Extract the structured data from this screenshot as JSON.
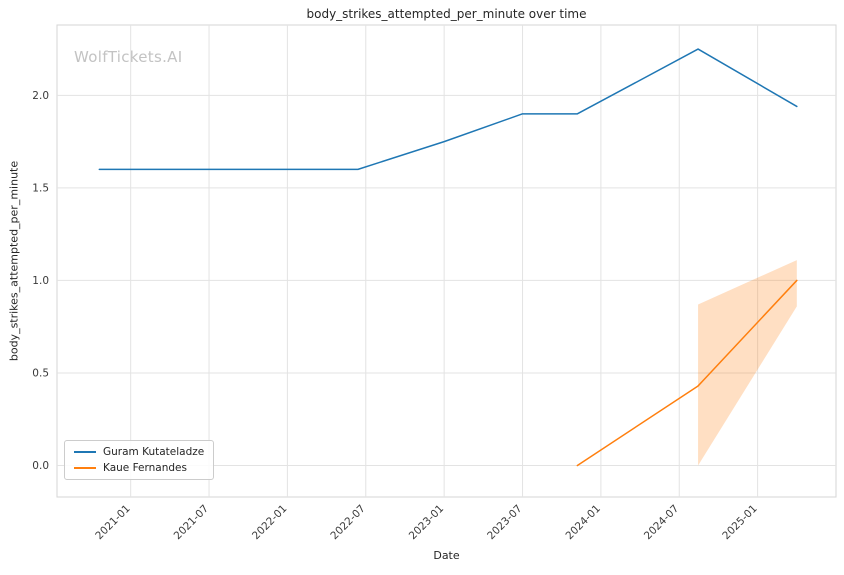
{
  "chart_data": {
    "type": "line",
    "title": "body_strikes_attempted_per_minute over time",
    "xlabel": "Date",
    "ylabel": "body_strikes_attempted_per_minute",
    "watermark": "WolfTickets.AI",
    "xlim": [
      2020.53,
      2025.5
    ],
    "ylim": [
      -0.17,
      2.38
    ],
    "grid": true,
    "legend_position": "lower left",
    "grid_color": "#e3e3e3",
    "border_color": "#d5d5d5",
    "x_ticks": [
      {
        "value": 2021.0,
        "label": "2021-01"
      },
      {
        "value": 2021.5,
        "label": "2021-07"
      },
      {
        "value": 2022.0,
        "label": "2022-01"
      },
      {
        "value": 2022.5,
        "label": "2022-07"
      },
      {
        "value": 2023.0,
        "label": "2023-01"
      },
      {
        "value": 2023.5,
        "label": "2023-07"
      },
      {
        "value": 2024.0,
        "label": "2024-01"
      },
      {
        "value": 2024.5,
        "label": "2024-07"
      },
      {
        "value": 2025.0,
        "label": "2025-01"
      }
    ],
    "y_ticks": [
      {
        "value": 0.0,
        "label": "0.0"
      },
      {
        "value": 0.5,
        "label": "0.5"
      },
      {
        "value": 1.0,
        "label": "1.0"
      },
      {
        "value": 1.5,
        "label": "1.5"
      },
      {
        "value": 2.0,
        "label": "2.0"
      }
    ],
    "series": [
      {
        "name": "Guram Kutateladze",
        "color": "#1f77b4",
        "points": [
          {
            "x": 2020.8,
            "y": 1.6,
            "date": "2020-10"
          },
          {
            "x": 2022.45,
            "y": 1.6,
            "date": "2022-06"
          },
          {
            "x": 2023.0,
            "y": 1.75,
            "date": "2023-01"
          },
          {
            "x": 2023.5,
            "y": 1.9,
            "date": "2023-07"
          },
          {
            "x": 2023.85,
            "y": 1.9,
            "date": "2023-11"
          },
          {
            "x": 2024.62,
            "y": 2.25,
            "date": "2024-08"
          },
          {
            "x": 2025.25,
            "y": 1.94,
            "date": "2025-04"
          }
        ]
      },
      {
        "name": "Kaue Fernandes",
        "color": "#ff7f0e",
        "points": [
          {
            "x": 2023.85,
            "y": 0.0,
            "date": "2023-11"
          },
          {
            "x": 2024.62,
            "y": 0.43,
            "date": "2024-08"
          },
          {
            "x": 2025.25,
            "y": 1.0,
            "date": "2025-04"
          }
        ],
        "band": {
          "x": [
            2024.62,
            2025.25
          ],
          "lower": [
            0.0,
            0.86
          ],
          "upper": [
            0.87,
            1.11
          ],
          "fill_opacity": 0.25
        }
      }
    ]
  }
}
